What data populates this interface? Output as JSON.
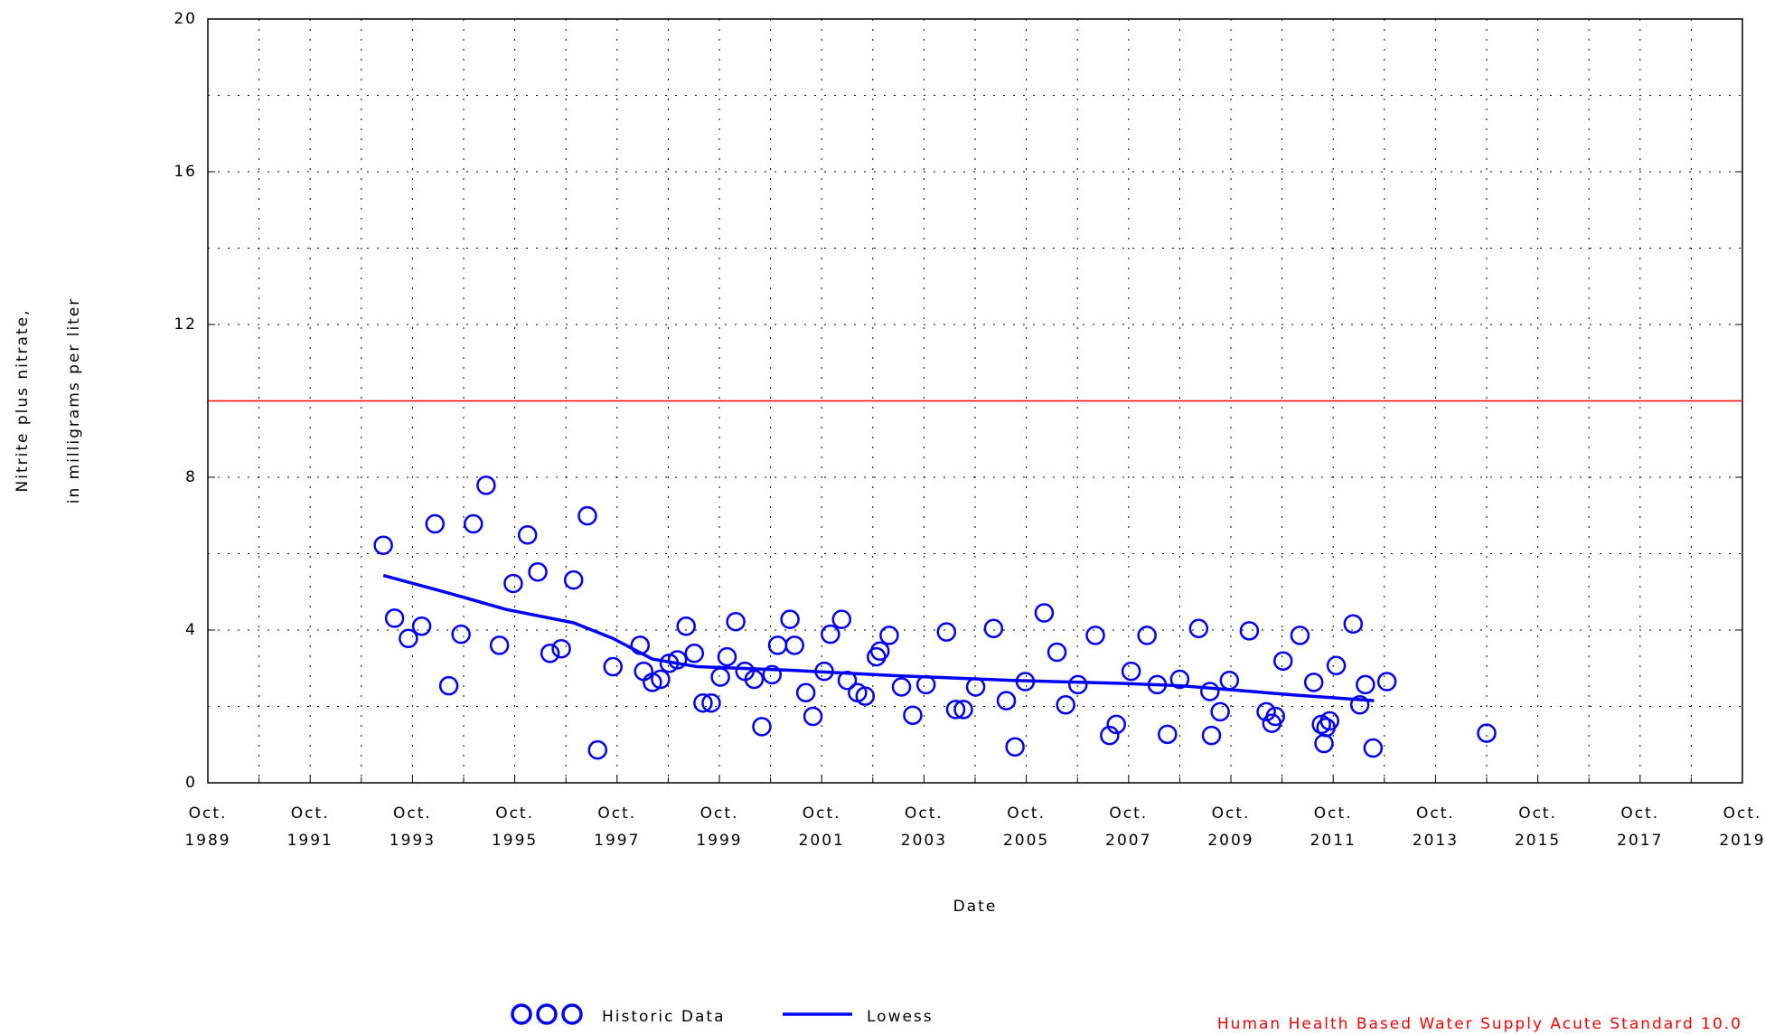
{
  "chart_data": {
    "type": "scatter",
    "xlabel": "Date",
    "ylabel": "Nitrite plus nitrate, in milligrams per liter",
    "xlim": [
      1989.75,
      2019.75
    ],
    "xticks": [
      {
        "value": 1989.75,
        "label": "Oct. 1989"
      },
      {
        "value": 1991.75,
        "label": "Oct. 1991"
      },
      {
        "value": 1993.75,
        "label": "Oct. 1993"
      },
      {
        "value": 1995.75,
        "label": "Oct. 1995"
      },
      {
        "value": 1997.75,
        "label": "Oct. 1997"
      },
      {
        "value": 1999.75,
        "label": "Oct. 1999"
      },
      {
        "value": 2001.75,
        "label": "Oct. 2001"
      },
      {
        "value": 2003.75,
        "label": "Oct. 2003"
      },
      {
        "value": 2005.75,
        "label": "Oct. 2005"
      },
      {
        "value": 2007.75,
        "label": "Oct. 2007"
      },
      {
        "value": 2009.75,
        "label": "Oct. 2009"
      },
      {
        "value": 2011.75,
        "label": "Oct. 2011"
      },
      {
        "value": 2013.75,
        "label": "Oct. 2013"
      },
      {
        "value": 2015.75,
        "label": "Oct. 2015"
      },
      {
        "value": 2017.75,
        "label": "Oct. 2017"
      },
      {
        "value": 2019.75,
        "label": "Oct. 2019"
      }
    ],
    "ylim": [
      0,
      20
    ],
    "yticks": [
      0,
      4,
      8,
      12,
      16,
      20
    ],
    "grid": true,
    "series": [
      {
        "name": "Historic Data",
        "color": "#0000ff",
        "type": "scatter",
        "x": [
          1993.18,
          1993.4,
          1993.67,
          1993.93,
          1994.19,
          1994.46,
          1994.7,
          1994.94,
          1995.19,
          1995.45,
          1995.72,
          1996.0,
          1996.2,
          1996.44,
          1996.66,
          1996.9,
          1997.17,
          1997.37,
          1997.67,
          1998.2,
          1998.27,
          1998.44,
          1998.6,
          1998.77,
          1998.93,
          1999.1,
          1999.26,
          1999.43,
          1999.59,
          1999.77,
          1999.9,
          2000.07,
          2000.25,
          2000.43,
          2000.58,
          2000.78,
          2000.89,
          2001.13,
          2001.22,
          2001.44,
          2001.58,
          2001.8,
          2001.92,
          2002.14,
          2002.25,
          2002.45,
          2002.6,
          2002.82,
          2002.89,
          2003.07,
          2003.31,
          2003.53,
          2003.79,
          2004.19,
          2004.37,
          2004.52,
          2004.76,
          2005.11,
          2005.36,
          2005.53,
          2005.73,
          2006.1,
          2006.35,
          2006.52,
          2006.76,
          2007.1,
          2007.38,
          2007.51,
          2007.8,
          2008.11,
          2008.31,
          2008.51,
          2008.75,
          2009.12,
          2009.34,
          2009.37,
          2009.54,
          2009.72,
          2010.11,
          2010.44,
          2010.55,
          2010.62,
          2010.77,
          2011.1,
          2011.37,
          2011.52,
          2011.57,
          2011.61,
          2011.68,
          2011.81,
          2012.14,
          2012.27,
          2012.38,
          2012.53,
          2012.8,
          2014.75
        ],
        "values": [
          6.22,
          4.31,
          3.78,
          4.1,
          6.78,
          2.54,
          3.89,
          6.78,
          7.79,
          3.6,
          5.22,
          6.49,
          5.52,
          3.39,
          3.51,
          5.31,
          6.99,
          0.86,
          3.04,
          3.6,
          2.92,
          2.63,
          2.71,
          3.13,
          3.22,
          4.1,
          3.39,
          2.09,
          2.09,
          2.77,
          3.3,
          4.22,
          2.92,
          2.71,
          1.47,
          2.83,
          3.6,
          4.28,
          3.6,
          2.36,
          1.74,
          2.92,
          3.89,
          4.28,
          2.68,
          2.36,
          2.27,
          3.3,
          3.45,
          3.86,
          2.51,
          1.77,
          2.57,
          3.95,
          1.92,
          1.92,
          2.51,
          4.04,
          2.15,
          0.94,
          2.65,
          4.45,
          3.42,
          2.04,
          2.57,
          3.86,
          1.24,
          1.53,
          2.92,
          3.86,
          2.57,
          1.27,
          2.71,
          4.04,
          2.39,
          1.24,
          1.86,
          2.68,
          3.98,
          1.86,
          1.56,
          1.74,
          3.19,
          3.86,
          2.63,
          1.53,
          1.03,
          1.45,
          1.62,
          3.07,
          4.16,
          2.04,
          2.57,
          0.91,
          2.65,
          1.3
        ]
      },
      {
        "name": "Lowess",
        "color": "#0000ff",
        "type": "line",
        "x": [
          1993.18,
          1994.48,
          1995.58,
          1996.9,
          1997.67,
          1998.44,
          1999.32,
          2001.09,
          2003.29,
          2005.49,
          2007.69,
          2008.79,
          2009.89,
          2010.99,
          2012.55
        ],
        "values": [
          5.43,
          4.96,
          4.54,
          4.19,
          3.78,
          3.24,
          3.04,
          2.95,
          2.8,
          2.68,
          2.6,
          2.54,
          2.42,
          2.3,
          2.15
        ]
      }
    ],
    "annotations": [
      {
        "text": "Human Health Based Water Supply Acute Standard 10.0",
        "value": 10,
        "color": "#ff0000"
      }
    ]
  }
}
